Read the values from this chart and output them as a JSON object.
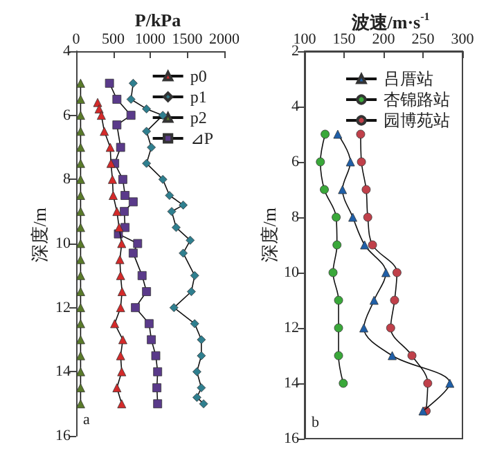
{
  "chart_data": [
    {
      "type": "line",
      "xlabel": "P/kPa",
      "ylabel": "深度/m",
      "xlim": [
        0,
        2000
      ],
      "xticks": [
        0,
        500,
        1000,
        1500,
        2000
      ],
      "ylim": [
        16,
        4
      ],
      "yticks": [
        4,
        6,
        8,
        10,
        12,
        14,
        16
      ],
      "legend": "top right",
      "grid": false,
      "annotations": [
        "a"
      ],
      "series": [
        {
          "name": "p0",
          "color": "#d42a2a",
          "marker": "triangle",
          "x": [
            290,
            310,
            340,
            380,
            460,
            470,
            490,
            500,
            550,
            580,
            615,
            590,
            600,
            620,
            600,
            520,
            630,
            600,
            615,
            550,
            615
          ],
          "values": [
            5.6,
            5.8,
            6,
            6.5,
            7,
            7.5,
            8,
            8.5,
            9,
            9.5,
            10,
            10.5,
            11,
            11.5,
            12,
            12.5,
            13,
            13.5,
            14,
            14.5,
            15
          ]
        },
        {
          "name": "p1",
          "color": "#2f7f8f",
          "marker": "diamond",
          "x": [
            770,
            740,
            950,
            1170,
            950,
            1015,
            950,
            1170,
            1260,
            1445,
            1290,
            1350,
            1540,
            1445,
            1600,
            1555,
            1320,
            1600,
            1690,
            1690,
            1630,
            1690,
            1630,
            1720
          ],
          "values": [
            5,
            5.5,
            5.8,
            6,
            6.5,
            7,
            7.5,
            8,
            8.5,
            8.8,
            9,
            9.5,
            9.9,
            10.3,
            11,
            11.5,
            12,
            12.5,
            13,
            13.5,
            14,
            14.5,
            14.8,
            15
          ]
        },
        {
          "name": "p2",
          "color": "#5a7a2a",
          "marker": "triangle",
          "x": [
            60,
            60,
            60,
            60,
            60,
            60,
            60,
            60,
            60,
            60,
            60,
            60,
            60,
            60,
            60,
            60,
            60,
            60,
            60,
            60,
            60
          ],
          "values": [
            5,
            5.5,
            6,
            6.5,
            7,
            7.5,
            8,
            8.5,
            9,
            9.5,
            10,
            10.5,
            11,
            11.5,
            12,
            12.5,
            13,
            13.5,
            14,
            14.5,
            15
          ]
        },
        {
          "name": "⊿P",
          "color": "#5a3a8a",
          "marker": "square",
          "x": [
            450,
            550,
            740,
            550,
            600,
            520,
            630,
            660,
            770,
            650,
            660,
            570,
            830,
            770,
            890,
            950,
            800,
            985,
            1015,
            1075,
            1100,
            1090,
            1100
          ],
          "values": [
            5,
            5.5,
            6,
            6.3,
            7,
            7.5,
            8,
            8.5,
            8.7,
            9,
            9.5,
            9.7,
            10,
            10.3,
            11,
            11.5,
            12,
            12.5,
            13,
            13.5,
            14,
            14.5,
            15
          ]
        }
      ]
    },
    {
      "type": "line",
      "xlabel": "波速/m·s$^{-1}$",
      "ylabel": "深度/m",
      "xlim": [
        100,
        300
      ],
      "xticks": [
        100,
        150,
        200,
        250,
        300
      ],
      "ylim": [
        16,
        2
      ],
      "yticks": [
        2,
        4,
        6,
        8,
        10,
        12,
        14,
        16
      ],
      "legend": "top right",
      "grid": false,
      "annotations": [
        "b"
      ],
      "series": [
        {
          "name": "吕厝站",
          "color": "#1f5fa8",
          "marker": "triangle",
          "x": [
            142,
            158,
            148,
            161,
            176,
            203,
            188,
            175,
            211,
            284,
            250
          ],
          "values": [
            5,
            6,
            7,
            8,
            9,
            10,
            11,
            12,
            13,
            14,
            15
          ]
        },
        {
          "name": "杏锦路站",
          "color": "#3aa83a",
          "marker": "circle",
          "x": [
            126,
            120,
            125,
            140,
            141,
            136,
            143,
            143,
            143,
            149
          ],
          "values": [
            5,
            6,
            7,
            8,
            9,
            10,
            11,
            12,
            13,
            14
          ]
        },
        {
          "name": "园博苑站",
          "color": "#c0404a",
          "marker": "circle",
          "x": [
            171,
            172,
            178,
            180,
            186,
            217,
            214,
            209,
            236,
            256,
            254
          ],
          "values": [
            5,
            6,
            7,
            8,
            9,
            10,
            11,
            12,
            13,
            14,
            15
          ]
        }
      ]
    }
  ]
}
